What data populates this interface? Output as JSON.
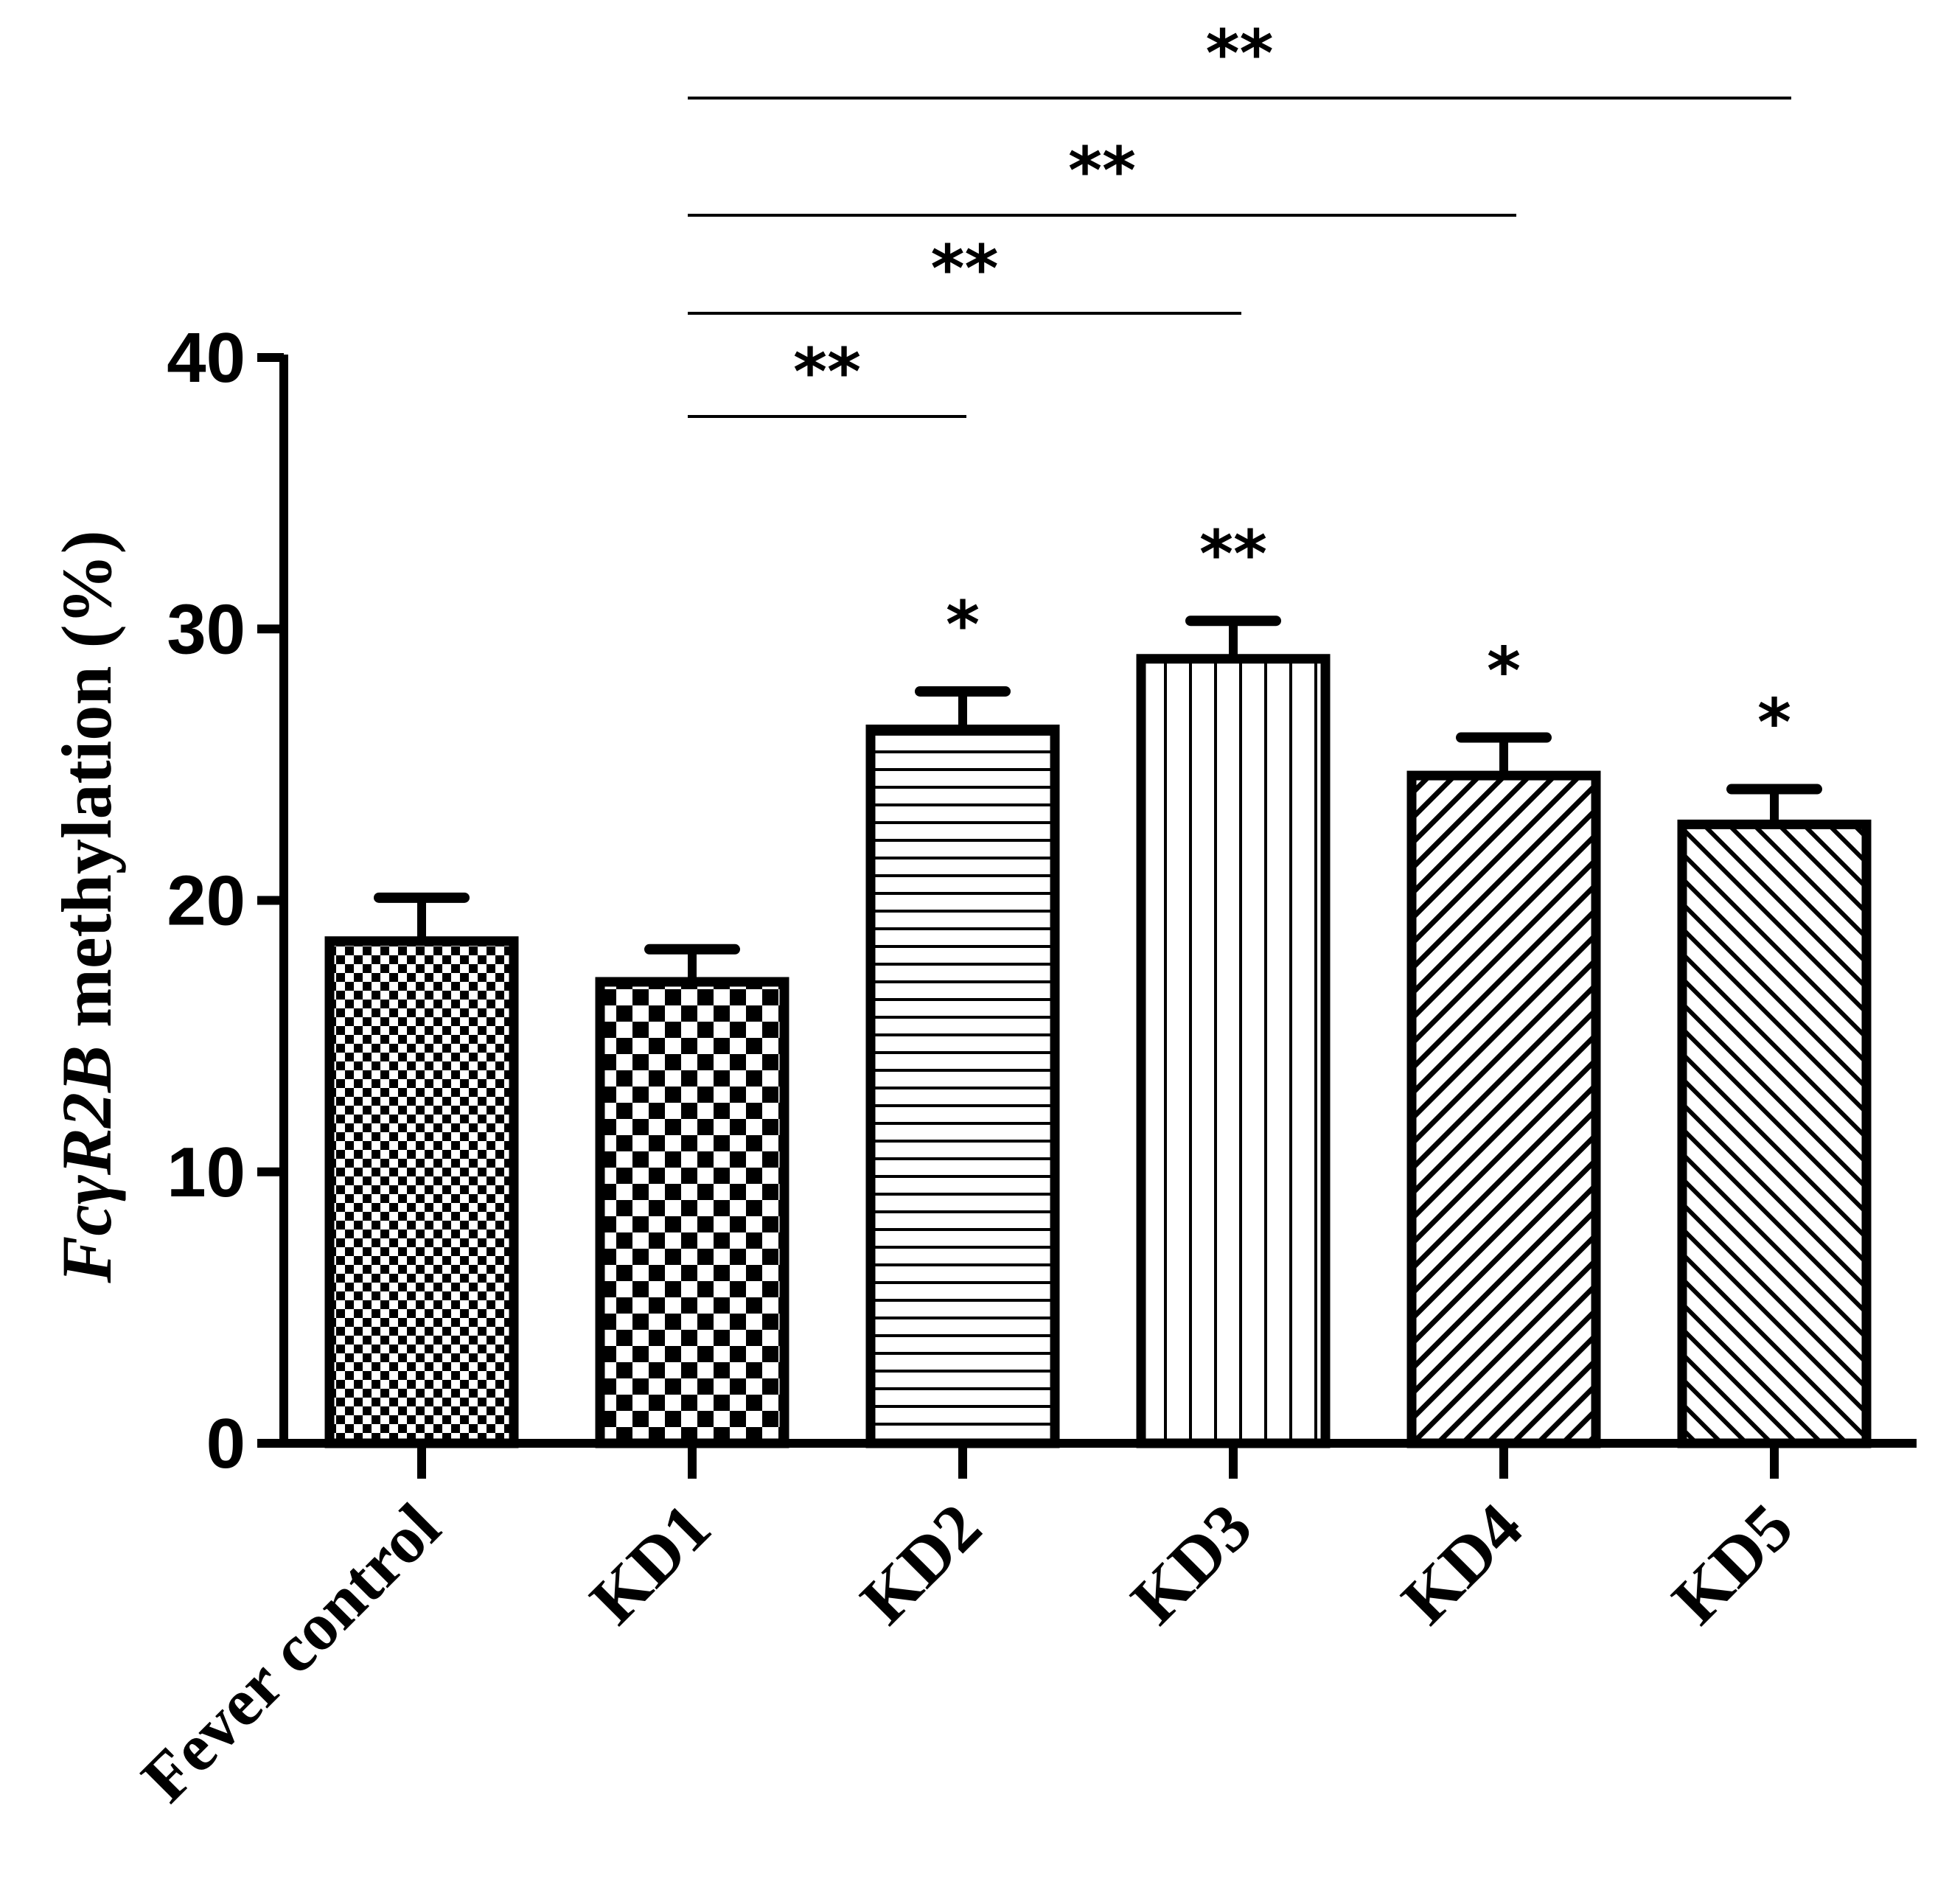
{
  "chart_data": {
    "type": "bar",
    "ylabel_italic": "FcγR2B",
    "ylabel_rest": " methylation (%)",
    "ylim": [
      0,
      40
    ],
    "yticks": [
      0,
      10,
      20,
      30,
      40
    ],
    "ytick_labels": [
      "0",
      "10",
      "20",
      "30",
      "40"
    ],
    "categories": [
      "Fever control",
      "KD1",
      "KD2",
      "KD3",
      "KD4",
      "KD5"
    ],
    "values": [
      18.5,
      17.0,
      26.3,
      28.9,
      24.6,
      22.8
    ],
    "errors": [
      1.6,
      1.2,
      1.4,
      1.4,
      1.4,
      1.3
    ],
    "bar_significance": [
      "",
      "",
      "*",
      "**",
      "*",
      "*"
    ],
    "bar_patterns": [
      "fine-checker",
      "checker",
      "horizontal-lines",
      "vertical-lines",
      "diagonal-forward",
      "diagonal-back"
    ],
    "comparisons": [
      {
        "from": "KD1",
        "to": "KD2",
        "label": "**"
      },
      {
        "from": "KD1",
        "to": "KD3",
        "label": "**"
      },
      {
        "from": "KD1",
        "to": "KD4",
        "label": "**"
      },
      {
        "from": "KD1",
        "to": "KD5",
        "label": "**"
      }
    ],
    "grid": false,
    "legend": "none"
  }
}
